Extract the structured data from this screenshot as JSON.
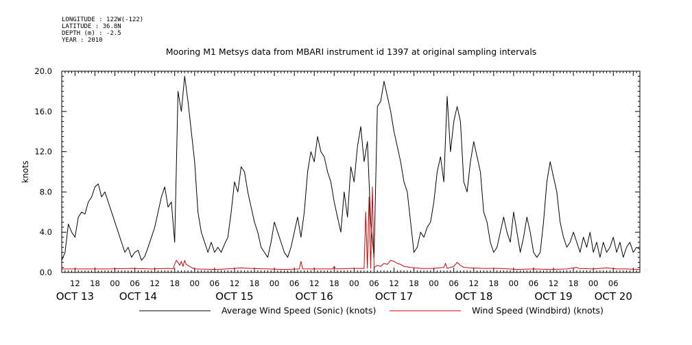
{
  "metadata": [
    "LONGITUDE : 122W(-122)",
    "LATITUDE : 36.8N",
    "DEPTH (m) : -2.5",
    "YEAR : 2010"
  ],
  "chart_data": {
    "type": "line",
    "title": "Mooring M1 Metsys data from MBARI instrument id 1397 at original sampling intervals",
    "ylabel": "knots",
    "xlabel": "",
    "ylim": [
      0,
      20
    ],
    "y_ticks": [
      "0.0",
      "4.0",
      "8.0",
      "12.0",
      "16.0",
      "20.0"
    ],
    "x_range_hours": [
      8,
      182
    ],
    "x_ticks": [
      {
        "hour": 12,
        "label": "12"
      },
      {
        "hour": 18,
        "label": "18"
      },
      {
        "hour": 24,
        "label": "00"
      },
      {
        "hour": 30,
        "label": "06"
      },
      {
        "hour": 36,
        "label": "12"
      },
      {
        "hour": 42,
        "label": "18"
      },
      {
        "hour": 48,
        "label": "00"
      },
      {
        "hour": 54,
        "label": "06"
      },
      {
        "hour": 60,
        "label": "12"
      },
      {
        "hour": 66,
        "label": "18"
      },
      {
        "hour": 72,
        "label": "00"
      },
      {
        "hour": 78,
        "label": "06"
      },
      {
        "hour": 84,
        "label": "12"
      },
      {
        "hour": 90,
        "label": "18"
      },
      {
        "hour": 96,
        "label": "00"
      },
      {
        "hour": 102,
        "label": "06"
      },
      {
        "hour": 108,
        "label": "12"
      },
      {
        "hour": 114,
        "label": "18"
      },
      {
        "hour": 120,
        "label": "00"
      },
      {
        "hour": 126,
        "label": "06"
      },
      {
        "hour": 132,
        "label": "12"
      },
      {
        "hour": 138,
        "label": "18"
      },
      {
        "hour": 144,
        "label": "00"
      },
      {
        "hour": 150,
        "label": "06"
      },
      {
        "hour": 156,
        "label": "12"
      },
      {
        "hour": 162,
        "label": "18"
      },
      {
        "hour": 168,
        "label": "00"
      },
      {
        "hour": 174,
        "label": "06"
      }
    ],
    "day_labels": [
      {
        "hour": 12,
        "label": "OCT 13"
      },
      {
        "hour": 31,
        "label": "OCT 14"
      },
      {
        "hour": 60,
        "label": "OCT 15"
      },
      {
        "hour": 84,
        "label": "OCT 16"
      },
      {
        "hour": 108,
        "label": "OCT 17"
      },
      {
        "hour": 132,
        "label": "OCT 18"
      },
      {
        "hour": 156,
        "label": "OCT 19"
      },
      {
        "hour": 174,
        "label": "OCT 20"
      }
    ],
    "series": [
      {
        "name": "Average Wind Speed (Sonic) (knots)",
        "color": "#000000",
        "points": [
          [
            8.0,
            1.2
          ],
          [
            9.0,
            2.0
          ],
          [
            10.0,
            4.8
          ],
          [
            11.0,
            4.0
          ],
          [
            12.0,
            3.5
          ],
          [
            13.0,
            5.5
          ],
          [
            14.0,
            6.0
          ],
          [
            15.0,
            5.8
          ],
          [
            16.0,
            7.0
          ],
          [
            17.0,
            7.5
          ],
          [
            18.0,
            8.5
          ],
          [
            19.0,
            8.8
          ],
          [
            20.0,
            7.5
          ],
          [
            21.0,
            8.0
          ],
          [
            22.0,
            7.0
          ],
          [
            23.0,
            6.0
          ],
          [
            24.0,
            5.0
          ],
          [
            25.0,
            4.0
          ],
          [
            26.0,
            3.0
          ],
          [
            27.0,
            2.0
          ],
          [
            28.0,
            2.5
          ],
          [
            29.0,
            1.5
          ],
          [
            30.0,
            2.0
          ],
          [
            31.0,
            2.2
          ],
          [
            32.0,
            1.2
          ],
          [
            33.0,
            1.6
          ],
          [
            34.0,
            2.5
          ],
          [
            35.0,
            3.5
          ],
          [
            36.0,
            4.5
          ],
          [
            37.0,
            6.0
          ],
          [
            38.0,
            7.5
          ],
          [
            39.0,
            8.5
          ],
          [
            40.0,
            6.5
          ],
          [
            41.0,
            7.0
          ],
          [
            42.0,
            3.0
          ],
          [
            43.0,
            18.0
          ],
          [
            44.0,
            16.0
          ],
          [
            45.0,
            19.5
          ],
          [
            46.0,
            17.0
          ],
          [
            47.0,
            14.0
          ],
          [
            48.0,
            11.0
          ],
          [
            49.0,
            6.0
          ],
          [
            50.0,
            4.0
          ],
          [
            51.0,
            3.0
          ],
          [
            52.0,
            2.0
          ],
          [
            53.0,
            3.0
          ],
          [
            54.0,
            2.0
          ],
          [
            55.0,
            2.5
          ],
          [
            56.0,
            2.0
          ],
          [
            57.0,
            2.8
          ],
          [
            58.0,
            3.5
          ],
          [
            59.0,
            6.0
          ],
          [
            60.0,
            9.0
          ],
          [
            61.0,
            8.0
          ],
          [
            62.0,
            10.5
          ],
          [
            63.0,
            10.0
          ],
          [
            64.0,
            8.0
          ],
          [
            65.0,
            6.5
          ],
          [
            66.0,
            5.0
          ],
          [
            67.0,
            4.0
          ],
          [
            68.0,
            2.5
          ],
          [
            69.0,
            2.0
          ],
          [
            70.0,
            1.5
          ],
          [
            71.0,
            3.0
          ],
          [
            72.0,
            5.0
          ],
          [
            73.0,
            4.0
          ],
          [
            74.0,
            3.0
          ],
          [
            75.0,
            2.0
          ],
          [
            76.0,
            1.5
          ],
          [
            77.0,
            2.5
          ],
          [
            78.0,
            4.0
          ],
          [
            79.0,
            5.5
          ],
          [
            80.0,
            3.5
          ],
          [
            81.0,
            6.0
          ],
          [
            82.0,
            10.0
          ],
          [
            83.0,
            12.0
          ],
          [
            84.0,
            11.0
          ],
          [
            85.0,
            13.5
          ],
          [
            86.0,
            12.0
          ],
          [
            87.0,
            11.5
          ],
          [
            88.0,
            10.0
          ],
          [
            89.0,
            9.0
          ],
          [
            90.0,
            7.0
          ],
          [
            91.0,
            5.5
          ],
          [
            92.0,
            4.0
          ],
          [
            93.0,
            8.0
          ],
          [
            94.0,
            5.5
          ],
          [
            95.0,
            10.5
          ],
          [
            96.0,
            9.0
          ],
          [
            97.0,
            12.5
          ],
          [
            98.0,
            14.5
          ],
          [
            99.0,
            11.0
          ],
          [
            100.0,
            13.0
          ],
          [
            101.0,
            5.0
          ],
          [
            102.0,
            1.5
          ],
          [
            103.0,
            16.5
          ],
          [
            104.0,
            17.0
          ],
          [
            105.0,
            19.0
          ],
          [
            106.0,
            17.5
          ],
          [
            107.0,
            16.0
          ],
          [
            108.0,
            14.0
          ],
          [
            109.0,
            12.5
          ],
          [
            110.0,
            11.0
          ],
          [
            111.0,
            9.0
          ],
          [
            112.0,
            8.0
          ],
          [
            113.0,
            5.0
          ],
          [
            114.0,
            2.0
          ],
          [
            115.0,
            2.5
          ],
          [
            116.0,
            4.0
          ],
          [
            117.0,
            3.5
          ],
          [
            118.0,
            4.5
          ],
          [
            119.0,
            5.0
          ],
          [
            120.0,
            7.0
          ],
          [
            121.0,
            10.0
          ],
          [
            122.0,
            11.5
          ],
          [
            123.0,
            9.0
          ],
          [
            124.0,
            17.5
          ],
          [
            125.0,
            12.0
          ],
          [
            126.0,
            15.0
          ],
          [
            127.0,
            16.5
          ],
          [
            128.0,
            15.0
          ],
          [
            129.0,
            9.0
          ],
          [
            130.0,
            8.0
          ],
          [
            131.0,
            11.0
          ],
          [
            132.0,
            13.0
          ],
          [
            133.0,
            11.5
          ],
          [
            134.0,
            10.0
          ],
          [
            135.0,
            6.0
          ],
          [
            136.0,
            5.0
          ],
          [
            137.0,
            3.0
          ],
          [
            138.0,
            2.0
          ],
          [
            139.0,
            2.5
          ],
          [
            140.0,
            4.0
          ],
          [
            141.0,
            5.5
          ],
          [
            142.0,
            4.0
          ],
          [
            143.0,
            3.0
          ],
          [
            144.0,
            6.0
          ],
          [
            145.0,
            4.0
          ],
          [
            146.0,
            2.0
          ],
          [
            147.0,
            3.5
          ],
          [
            148.0,
            5.5
          ],
          [
            149.0,
            4.0
          ],
          [
            150.0,
            2.0
          ],
          [
            151.0,
            1.5
          ],
          [
            152.0,
            2.0
          ],
          [
            153.0,
            5.0
          ],
          [
            154.0,
            9.0
          ],
          [
            155.0,
            11.0
          ],
          [
            156.0,
            9.5
          ],
          [
            157.0,
            8.0
          ],
          [
            158.0,
            5.0
          ],
          [
            159.0,
            3.5
          ],
          [
            160.0,
            2.5
          ],
          [
            161.0,
            3.0
          ],
          [
            162.0,
            4.0
          ],
          [
            163.0,
            3.0
          ],
          [
            164.0,
            2.0
          ],
          [
            165.0,
            3.5
          ],
          [
            166.0,
            2.5
          ],
          [
            167.0,
            4.0
          ],
          [
            168.0,
            2.0
          ],
          [
            169.0,
            3.0
          ],
          [
            170.0,
            1.5
          ],
          [
            171.0,
            3.0
          ],
          [
            172.0,
            2.0
          ],
          [
            173.0,
            2.5
          ],
          [
            174.0,
            3.5
          ],
          [
            175.0,
            2.0
          ],
          [
            176.0,
            3.0
          ],
          [
            177.0,
            1.5
          ],
          [
            178.0,
            2.5
          ],
          [
            179.0,
            3.0
          ],
          [
            180.0,
            2.0
          ],
          [
            181.0,
            2.5
          ],
          [
            182.0,
            2.3
          ]
        ]
      },
      {
        "name": "Wind Speed (Windbird) (knots)",
        "color": "#cc0000",
        "points": [
          [
            8.0,
            0.35
          ],
          [
            15.0,
            0.35
          ],
          [
            22.0,
            0.35
          ],
          [
            29.0,
            0.4
          ],
          [
            35.0,
            0.35
          ],
          [
            40.0,
            0.4
          ],
          [
            41.5,
            0.35
          ],
          [
            42.0,
            0.8
          ],
          [
            42.5,
            1.2
          ],
          [
            43.0,
            1.0
          ],
          [
            43.5,
            0.7
          ],
          [
            44.0,
            1.1
          ],
          [
            44.5,
            0.6
          ],
          [
            45.0,
            1.2
          ],
          [
            45.5,
            0.8
          ],
          [
            46.0,
            0.7
          ],
          [
            47.0,
            0.5
          ],
          [
            48.0,
            0.35
          ],
          [
            55.0,
            0.3
          ],
          [
            60.0,
            0.4
          ],
          [
            62.0,
            0.45
          ],
          [
            65.0,
            0.4
          ],
          [
            70.0,
            0.35
          ],
          [
            75.0,
            0.3
          ],
          [
            79.5,
            0.35
          ],
          [
            80.0,
            1.1
          ],
          [
            80.5,
            0.35
          ],
          [
            85.0,
            0.35
          ],
          [
            89.5,
            0.35
          ],
          [
            90.0,
            0.6
          ],
          [
            90.5,
            0.35
          ],
          [
            95.0,
            0.4
          ],
          [
            99.0,
            0.4
          ],
          [
            99.5,
            6.0
          ],
          [
            100.0,
            0.4
          ],
          [
            100.5,
            7.5
          ],
          [
            101.0,
            0.4
          ],
          [
            101.5,
            8.5
          ],
          [
            102.0,
            0.5
          ],
          [
            103.0,
            0.7
          ],
          [
            104.0,
            0.6
          ],
          [
            105.0,
            0.9
          ],
          [
            106.0,
            0.8
          ],
          [
            107.0,
            1.2
          ],
          [
            108.0,
            1.1
          ],
          [
            109.0,
            0.9
          ],
          [
            110.0,
            0.8
          ],
          [
            111.0,
            0.6
          ],
          [
            113.0,
            0.5
          ],
          [
            116.0,
            0.4
          ],
          [
            120.0,
            0.4
          ],
          [
            123.0,
            0.5
          ],
          [
            123.5,
            0.9
          ],
          [
            124.0,
            0.4
          ],
          [
            126.0,
            0.6
          ],
          [
            127.0,
            1.0
          ],
          [
            128.0,
            0.7
          ],
          [
            129.0,
            0.5
          ],
          [
            131.0,
            0.45
          ],
          [
            135.0,
            0.4
          ],
          [
            140.0,
            0.4
          ],
          [
            145.0,
            0.3
          ],
          [
            150.0,
            0.35
          ],
          [
            155.0,
            0.3
          ],
          [
            160.0,
            0.35
          ],
          [
            163.0,
            0.5
          ],
          [
            163.5,
            0.4
          ],
          [
            168.0,
            0.35
          ],
          [
            172.0,
            0.45
          ],
          [
            175.0,
            0.35
          ],
          [
            178.0,
            0.35
          ],
          [
            182.0,
            0.3
          ]
        ]
      }
    ],
    "legend_placement": "bottom"
  }
}
